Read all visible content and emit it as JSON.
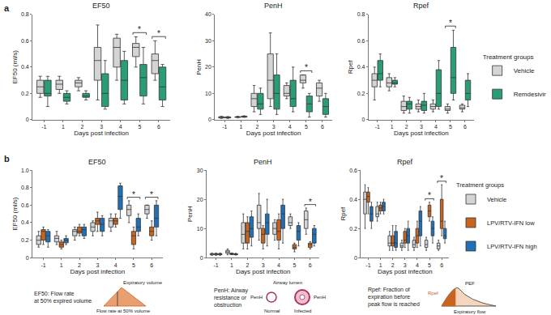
{
  "chart_data": [
    {
      "type": "box",
      "title": "EF50",
      "x_label": "Days post infection",
      "y_label": "EF50 (ml/s)",
      "categories": [
        "-1",
        "1",
        "2",
        "3",
        "4",
        "5",
        "6"
      ],
      "ylim": [
        0,
        0.8
      ],
      "yticks": [
        0,
        0.2,
        0.4,
        0.6,
        0.8
      ],
      "grid": false,
      "series": [
        {
          "name": "Vehicle",
          "color": "#d4d4d4",
          "min": [
            0.17,
            0.2,
            0.22,
            0.15,
            0.3,
            0.4,
            0.3
          ],
          "q1": [
            0.2,
            0.23,
            0.25,
            0.3,
            0.4,
            0.48,
            0.35
          ],
          "median": [
            0.25,
            0.27,
            0.28,
            0.45,
            0.55,
            0.55,
            0.45
          ],
          "q3": [
            0.3,
            0.3,
            0.3,
            0.55,
            0.62,
            0.58,
            0.5
          ],
          "max": [
            0.33,
            0.33,
            0.32,
            0.72,
            0.65,
            0.63,
            0.6
          ]
        },
        {
          "name": "Remdesivir",
          "color": "#2a9d78",
          "min": [
            0.1,
            0.12,
            0.15,
            0.08,
            0.12,
            0.12,
            0.1
          ],
          "q1": [
            0.18,
            0.14,
            0.17,
            0.1,
            0.15,
            0.18,
            0.15
          ],
          "median": [
            0.2,
            0.17,
            0.18,
            0.2,
            0.3,
            0.32,
            0.25
          ],
          "q3": [
            0.3,
            0.2,
            0.2,
            0.35,
            0.45,
            0.42,
            0.4
          ],
          "max": [
            0.33,
            0.22,
            0.22,
            0.45,
            0.52,
            0.55,
            0.42
          ]
        }
      ],
      "significance": [
        {
          "category": "5",
          "label": "*"
        },
        {
          "category": "6",
          "label": "*"
        }
      ]
    },
    {
      "type": "box",
      "title": "PenH",
      "x_label": "Days post infection",
      "y_label": "PenH",
      "categories": [
        "-1",
        "1",
        "2",
        "3",
        "4",
        "5",
        "6"
      ],
      "ylim": [
        0,
        40
      ],
      "yticks": [
        0,
        10,
        20,
        30,
        40
      ],
      "grid": false,
      "series": [
        {
          "name": "Vehicle",
          "color": "#d4d4d4",
          "min": [
            0.5,
            0.8,
            3,
            5,
            8,
            12,
            7
          ],
          "q1": [
            0.7,
            0.9,
            5,
            8,
            9,
            14,
            9
          ],
          "median": [
            0.9,
            1,
            8,
            15,
            10,
            15,
            12
          ],
          "q3": [
            1.1,
            1.1,
            10,
            25,
            13,
            17,
            14
          ],
          "max": [
            1.3,
            1.3,
            13,
            33,
            14,
            17,
            15
          ]
        },
        {
          "name": "Remdesivir",
          "color": "#2a9d78",
          "min": [
            0.5,
            0.9,
            2,
            2,
            3,
            1,
            1
          ],
          "q1": [
            0.7,
            1,
            4,
            4,
            5,
            3,
            2
          ],
          "median": [
            0.9,
            1.2,
            6,
            10,
            8,
            6,
            5
          ],
          "q3": [
            1,
            1.3,
            10,
            17,
            15,
            9,
            8
          ],
          "max": [
            1.2,
            1.5,
            12,
            25,
            20,
            10,
            10
          ]
        }
      ],
      "significance": [
        {
          "category": "5",
          "label": "*"
        }
      ]
    },
    {
      "type": "box",
      "title": "Rpef",
      "x_label": "Days post infection",
      "y_label": "Rpef",
      "categories": [
        "-1",
        "1",
        "2",
        "3",
        "4",
        "5",
        "6"
      ],
      "ylim": [
        0,
        0.8
      ],
      "yticks": [
        0,
        0.2,
        0.4,
        0.6,
        0.8
      ],
      "grid": false,
      "series": [
        {
          "name": "Vehicle",
          "color": "#d4d4d4",
          "min": [
            0.15,
            0.22,
            0.05,
            0.06,
            0.06,
            0.05,
            0.06
          ],
          "q1": [
            0.25,
            0.25,
            0.07,
            0.08,
            0.08,
            0.07,
            0.08
          ],
          "median": [
            0.3,
            0.28,
            0.1,
            0.1,
            0.1,
            0.08,
            0.09
          ],
          "q3": [
            0.35,
            0.32,
            0.14,
            0.12,
            0.12,
            0.1,
            0.11
          ],
          "max": [
            0.4,
            0.35,
            0.18,
            0.15,
            0.15,
            0.12,
            0.12
          ]
        },
        {
          "name": "Remdesivir",
          "color": "#2a9d78",
          "min": [
            0.25,
            0.25,
            0.05,
            0.05,
            0.08,
            0.15,
            0.1
          ],
          "q1": [
            0.3,
            0.27,
            0.08,
            0.07,
            0.1,
            0.2,
            0.15
          ],
          "median": [
            0.35,
            0.28,
            0.12,
            0.11,
            0.2,
            0.32,
            0.2
          ],
          "q3": [
            0.45,
            0.3,
            0.14,
            0.14,
            0.38,
            0.55,
            0.3
          ],
          "max": [
            0.5,
            0.32,
            0.17,
            0.2,
            0.45,
            0.68,
            0.35
          ]
        }
      ],
      "significance": [
        {
          "category": "5",
          "label": "*"
        }
      ]
    },
    {
      "type": "box",
      "title": "EF50",
      "x_label": "Days post infection",
      "y_label": "EF50 (ml/s)",
      "categories": [
        "-1",
        "1",
        "2",
        "3",
        "4",
        "5",
        "6"
      ],
      "ylim": [
        0,
        1
      ],
      "yticks": [
        0,
        0.2,
        0.4,
        0.6,
        0.8,
        {
          "value": 1,
          "label": "1.0"
        }
      ],
      "grid": false,
      "series": [
        {
          "name": "Vehicle",
          "color": "#d4d4d4",
          "min": [
            0.12,
            0.15,
            0.2,
            0.25,
            0.3,
            0.4,
            0.45
          ],
          "q1": [
            0.15,
            0.18,
            0.25,
            0.3,
            0.35,
            0.48,
            0.5
          ],
          "median": [
            0.2,
            0.22,
            0.3,
            0.35,
            0.42,
            0.55,
            0.55
          ],
          "q3": [
            0.25,
            0.25,
            0.32,
            0.4,
            0.45,
            0.6,
            0.6
          ],
          "max": [
            0.3,
            0.3,
            0.35,
            0.42,
            0.5,
            0.65,
            0.6
          ]
        },
        {
          "name": "LPV/RTV-IFN low",
          "color": "#c8641e",
          "min": [
            0.15,
            0.1,
            0.25,
            0.3,
            0.35,
            0.1,
            0.2
          ],
          "q1": [
            0.2,
            0.12,
            0.28,
            0.38,
            0.38,
            0.15,
            0.25
          ],
          "median": [
            0.3,
            0.15,
            0.3,
            0.42,
            0.42,
            0.25,
            0.3
          ],
          "q3": [
            0.32,
            0.18,
            0.35,
            0.45,
            0.45,
            0.3,
            0.35
          ],
          "max": [
            0.35,
            0.2,
            0.38,
            0.52,
            0.5,
            0.35,
            0.42
          ]
        },
        {
          "name": "LPV/RTV-IFN high",
          "color": "#2170b5",
          "min": [
            0.12,
            0.15,
            0.22,
            0.25,
            0.45,
            0.25,
            0.25
          ],
          "q1": [
            0.18,
            0.17,
            0.25,
            0.3,
            0.55,
            0.3,
            0.35
          ],
          "median": [
            0.25,
            0.2,
            0.32,
            0.38,
            0.7,
            0.35,
            0.45
          ],
          "q3": [
            0.3,
            0.22,
            0.35,
            0.45,
            0.82,
            0.45,
            0.6
          ],
          "max": [
            0.32,
            0.25,
            0.38,
            0.48,
            0.85,
            0.5,
            0.65
          ]
        }
      ],
      "significance": [
        {
          "category": "5",
          "label": "*"
        },
        {
          "category": "6",
          "label": "*"
        }
      ]
    },
    {
      "type": "box",
      "title": "PenH",
      "x_label": "Days post infection",
      "y_label": "PenH",
      "categories": [
        "-1",
        "1",
        "2",
        "3",
        "4",
        "5",
        "6"
      ],
      "ylim": [
        0,
        30
      ],
      "yticks": [
        0,
        10,
        20,
        30
      ],
      "grid": false,
      "series": [
        {
          "name": "Vehicle",
          "color": "#d4d4d4",
          "min": [
            0.8,
            1,
            3,
            6,
            6,
            10,
            8
          ],
          "q1": [
            1,
            1.5,
            5,
            10,
            8,
            11,
            10
          ],
          "median": [
            1.2,
            2,
            8,
            12,
            10,
            12,
            13
          ],
          "q3": [
            1.4,
            2.5,
            12,
            18,
            12,
            14,
            16
          ],
          "max": [
            1.6,
            3,
            15,
            22,
            13,
            15,
            17
          ]
        },
        {
          "name": "LPV/RTV-IFN low",
          "color": "#c8641e",
          "min": [
            0.8,
            1,
            3,
            3,
            3,
            2,
            3
          ],
          "q1": [
            1,
            1.1,
            5,
            5,
            6,
            3,
            3.5
          ],
          "median": [
            1.2,
            1.3,
            9,
            8,
            9,
            3.5,
            4.5
          ],
          "q3": [
            1.4,
            1.5,
            12,
            10,
            13,
            4.5,
            5
          ],
          "max": [
            1.6,
            1.6,
            14,
            11,
            15,
            5,
            5.5
          ]
        },
        {
          "name": "LPV/RTV-IFN high",
          "color": "#2170b5",
          "min": [
            0.8,
            0.9,
            4,
            4,
            5,
            4,
            4
          ],
          "q1": [
            1,
            1,
            7,
            8,
            10,
            6,
            5
          ],
          "median": [
            1.2,
            1.2,
            10,
            12,
            15,
            9,
            8
          ],
          "q3": [
            1.4,
            1.3,
            14,
            15,
            18,
            11,
            10
          ],
          "max": [
            1.6,
            1.5,
            16,
            20,
            20,
            12,
            11
          ]
        }
      ],
      "significance": [
        {
          "category": "6",
          "label": "*"
        }
      ]
    },
    {
      "type": "box",
      "title": "Rpef",
      "x_label": "Days post infection",
      "y_label": "Rpef",
      "categories": [
        "-1",
        "1",
        "2",
        "3",
        "4",
        "5",
        "6"
      ],
      "ylim": [
        0,
        0.6
      ],
      "yticks": [
        0,
        0.2,
        0.4,
        0.6
      ],
      "grid": false,
      "series": [
        {
          "name": "Vehicle",
          "color": "#d4d4d4",
          "min": [
            0.2,
            0.25,
            0.05,
            0.05,
            0.05,
            0.05,
            0.05
          ],
          "q1": [
            0.3,
            0.28,
            0.08,
            0.07,
            0.07,
            0.07,
            0.06
          ],
          "median": [
            0.4,
            0.3,
            0.1,
            0.08,
            0.09,
            0.09,
            0.08
          ],
          "q3": [
            0.45,
            0.35,
            0.15,
            0.1,
            0.12,
            0.12,
            0.1
          ],
          "max": [
            0.5,
            0.38,
            0.18,
            0.12,
            0.14,
            0.14,
            0.12
          ]
        },
        {
          "name": "LPV/RTV-IFN low",
          "color": "#c8641e",
          "min": [
            0.3,
            0.3,
            0.05,
            0.07,
            0.07,
            0.25,
            0.15
          ],
          "q1": [
            0.38,
            0.32,
            0.08,
            0.1,
            0.1,
            0.28,
            0.2
          ],
          "median": [
            0.42,
            0.34,
            0.1,
            0.12,
            0.15,
            0.32,
            0.25
          ],
          "q3": [
            0.45,
            0.36,
            0.15,
            0.18,
            0.2,
            0.36,
            0.4
          ],
          "max": [
            0.48,
            0.38,
            0.22,
            0.2,
            0.25,
            0.38,
            0.5
          ]
        },
        {
          "name": "LPV/RTV-IFN high",
          "color": "#2170b5",
          "min": [
            0.2,
            0.3,
            0.05,
            0.05,
            0.08,
            0.1,
            0.1
          ],
          "q1": [
            0.25,
            0.32,
            0.07,
            0.1,
            0.15,
            0.15,
            0.13
          ],
          "median": [
            0.3,
            0.35,
            0.1,
            0.15,
            0.25,
            0.2,
            0.15
          ],
          "q3": [
            0.35,
            0.38,
            0.18,
            0.2,
            0.32,
            0.25,
            0.2
          ],
          "max": [
            0.38,
            0.4,
            0.22,
            0.25,
            0.35,
            0.28,
            0.25
          ]
        }
      ],
      "significance": [
        {
          "category": "5",
          "label": "*"
        },
        {
          "category": "6",
          "label": "*"
        }
      ]
    }
  ],
  "figure": {
    "panel_labels": [
      "a",
      "b"
    ],
    "legend_title": "Treatment groups",
    "notes": [
      {
        "lines": [
          "EF50: Flow rate",
          "at 50% expired volume"
        ],
        "icon_labels": [
          "Expiratory volume",
          "Flow rate at 50% volume"
        ]
      },
      {
        "lines": [
          "PenH: Airway",
          "resistance or",
          "obstruction"
        ],
        "icon_labels": [
          "Airway lumen",
          "PenH",
          "Normal",
          "Infected",
          "PenH"
        ]
      },
      {
        "lines": [
          "Rpef: Fraction of",
          "expiration before",
          "peak flow is reached"
        ],
        "icon_labels": [
          "Rpef",
          "PEF",
          "Expiratory flow"
        ]
      }
    ]
  }
}
